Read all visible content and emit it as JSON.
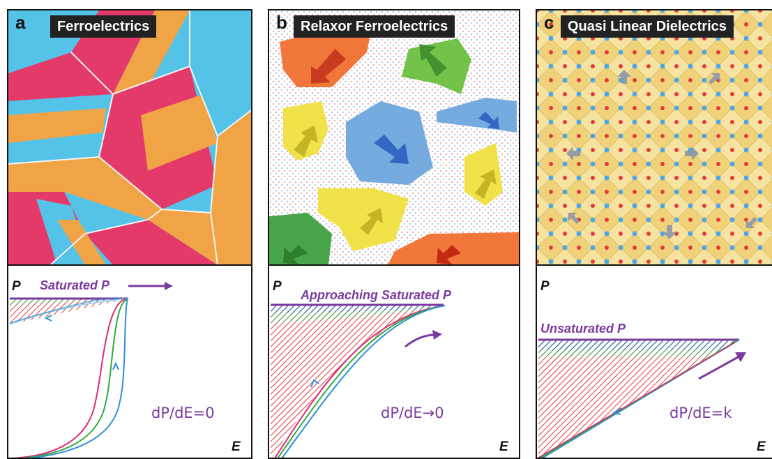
{
  "colors": {
    "purple": "#7a3a9e",
    "red_domain": "#e33a6a",
    "orange_domain": "#f0a445",
    "blue_domain": "#55c3e8",
    "green_curve": "#2faa3c",
    "blue_curve": "#2e8fd6",
    "magenta_curve": "#e0287a"
  },
  "panels": [
    {
      "letter": "a",
      "title": "Ferroelectrics",
      "p_label": "P",
      "e_label": "E",
      "annotation": "Saturated P",
      "formula": "dP/dE=0"
    },
    {
      "letter": "b",
      "title": "Relaxor Ferroelectrics",
      "p_label": "P",
      "e_label": "E",
      "annotation": "Approaching Saturated P",
      "formula": "dP/dE→0"
    },
    {
      "letter": "c",
      "title": "Quasi Linear Dielectrics",
      "p_label": "P",
      "e_label": "E",
      "annotation": "Unsaturated P",
      "formula": "dP/dE=k"
    }
  ]
}
